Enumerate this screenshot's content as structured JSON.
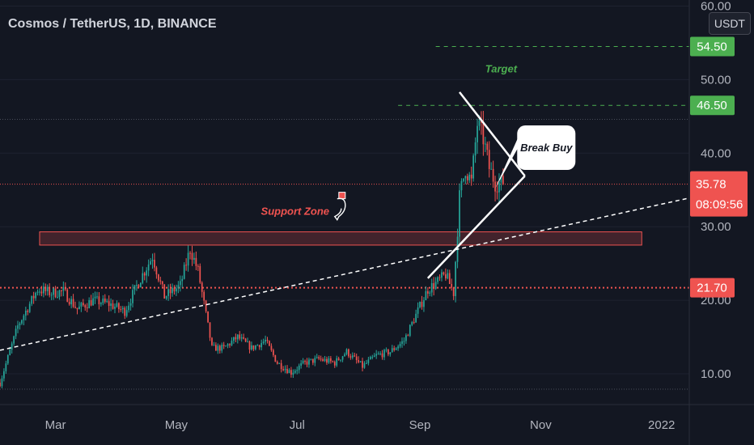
{
  "header": {
    "symbol_title": "Cosmos / TetherUS, 1D, BINANCE",
    "currency": "USDT"
  },
  "colors": {
    "background": "#131722",
    "up": "#26a69a",
    "down": "#ef5350",
    "axis_text": "#b2b5be",
    "target_green": "#4caf50",
    "support_red": "#ef5350",
    "white": "#ffffff"
  },
  "chart_data": {
    "type": "candlestick",
    "title": "Cosmos / TetherUS, 1D, BINANCE",
    "x_range": [
      "2021-02-01",
      "2022-01-15"
    ],
    "y_range": [
      7.5,
      60.0
    ],
    "x_tick_labels": [
      {
        "label": "Mar",
        "date": "2021-03-01"
      },
      {
        "label": "May",
        "date": "2021-05-01"
      },
      {
        "label": "Jul",
        "date": "2021-07-01"
      },
      {
        "label": "Sep",
        "date": "2021-09-01"
      },
      {
        "label": "Nov",
        "date": "2021-11-01"
      },
      {
        "label": "2022",
        "date": "2022-01-01"
      }
    ],
    "y_tick_labels": [
      "10.00",
      "20.00",
      "30.00",
      "40.00",
      "50.00",
      "60.00"
    ],
    "y_tick_values": [
      10,
      20,
      30,
      40,
      50,
      60
    ],
    "price_path": [
      [
        "2021-02-01",
        8.8
      ],
      [
        "2021-02-10",
        16.5
      ],
      [
        "2021-02-20",
        21.5
      ],
      [
        "2021-02-27",
        21.0
      ],
      [
        "2021-03-05",
        21.2
      ],
      [
        "2021-03-12",
        18.8
      ],
      [
        "2021-03-20",
        20.0
      ],
      [
        "2021-03-28",
        19.5
      ],
      [
        "2021-04-05",
        18.5
      ],
      [
        "2021-04-12",
        22.5
      ],
      [
        "2021-04-19",
        26.0
      ],
      [
        "2021-04-25",
        20.5
      ],
      [
        "2021-05-03",
        22.0
      ],
      [
        "2021-05-08",
        27.0
      ],
      [
        "2021-05-12",
        24.0
      ],
      [
        "2021-05-19",
        13.5
      ],
      [
        "2021-05-25",
        13.5
      ],
      [
        "2021-06-01",
        15.0
      ],
      [
        "2021-06-08",
        13.5
      ],
      [
        "2021-06-15",
        14.5
      ],
      [
        "2021-06-21",
        11.5
      ],
      [
        "2021-06-28",
        10.2
      ],
      [
        "2021-07-05",
        11.5
      ],
      [
        "2021-07-12",
        12.0
      ],
      [
        "2021-07-20",
        11.5
      ],
      [
        "2021-07-26",
        13.0
      ],
      [
        "2021-08-03",
        11.0
      ],
      [
        "2021-08-10",
        12.5
      ],
      [
        "2021-08-17",
        13.0
      ],
      [
        "2021-08-24",
        14.5
      ],
      [
        "2021-08-30",
        18.0
      ],
      [
        "2021-09-05",
        21.5
      ],
      [
        "2021-09-10",
        22.5
      ],
      [
        "2021-09-14",
        23.5
      ],
      [
        "2021-09-18",
        21.0
      ],
      [
        "2021-09-21",
        34.0
      ],
      [
        "2021-09-24",
        38.0
      ],
      [
        "2021-09-27",
        36.0
      ],
      [
        "2021-09-30",
        44.0
      ],
      [
        "2021-10-03",
        42.0
      ],
      [
        "2021-10-06",
        38.0
      ],
      [
        "2021-10-09",
        36.0
      ],
      [
        "2021-10-13",
        35.78
      ]
    ],
    "levels": [
      {
        "name": "target-level-upper",
        "value": 54.5,
        "label": "54.50",
        "color": "#4caf50"
      },
      {
        "name": "target-level-lower",
        "value": 46.5,
        "label": "46.50",
        "color": "#4caf50"
      },
      {
        "name": "support-level",
        "value": 21.7,
        "label": "21.70",
        "color": "#ef5350"
      },
      {
        "name": "resistance-line",
        "value": 44.6
      },
      {
        "name": "last-price-line",
        "value": 35.78
      }
    ],
    "last_price": {
      "label": "35.78",
      "countdown": "08:09:56",
      "value": 35.78
    },
    "support_zone": {
      "from": "2021-02-21",
      "to": "2021-12-22",
      "low": 27.5,
      "high": 29.3
    },
    "trendline": {
      "points": [
        [
          "2021-02-01",
          13.2
        ],
        [
          "2022-01-15",
          33.9
        ]
      ]
    },
    "triangle": {
      "upper": [
        [
          "2021-09-21",
          48.3
        ],
        [
          "2021-10-24",
          36.9
        ]
      ],
      "lower": [
        [
          "2021-09-05",
          23.0
        ],
        [
          "2021-10-24",
          36.9
        ]
      ]
    },
    "annotations": [
      {
        "name": "target-annotation",
        "text": "Target",
        "date": "2021-10-12",
        "value": 51.0,
        "color": "#4caf50"
      },
      {
        "name": "support-zone-annotation",
        "text": "Support Zone",
        "date": "2021-06-30",
        "value": 31.6,
        "color": "#ef5350"
      },
      {
        "name": "break-buy-callout",
        "text": "Break Buy",
        "date": "2021-11-03",
        "value": 40.8
      }
    ]
  }
}
